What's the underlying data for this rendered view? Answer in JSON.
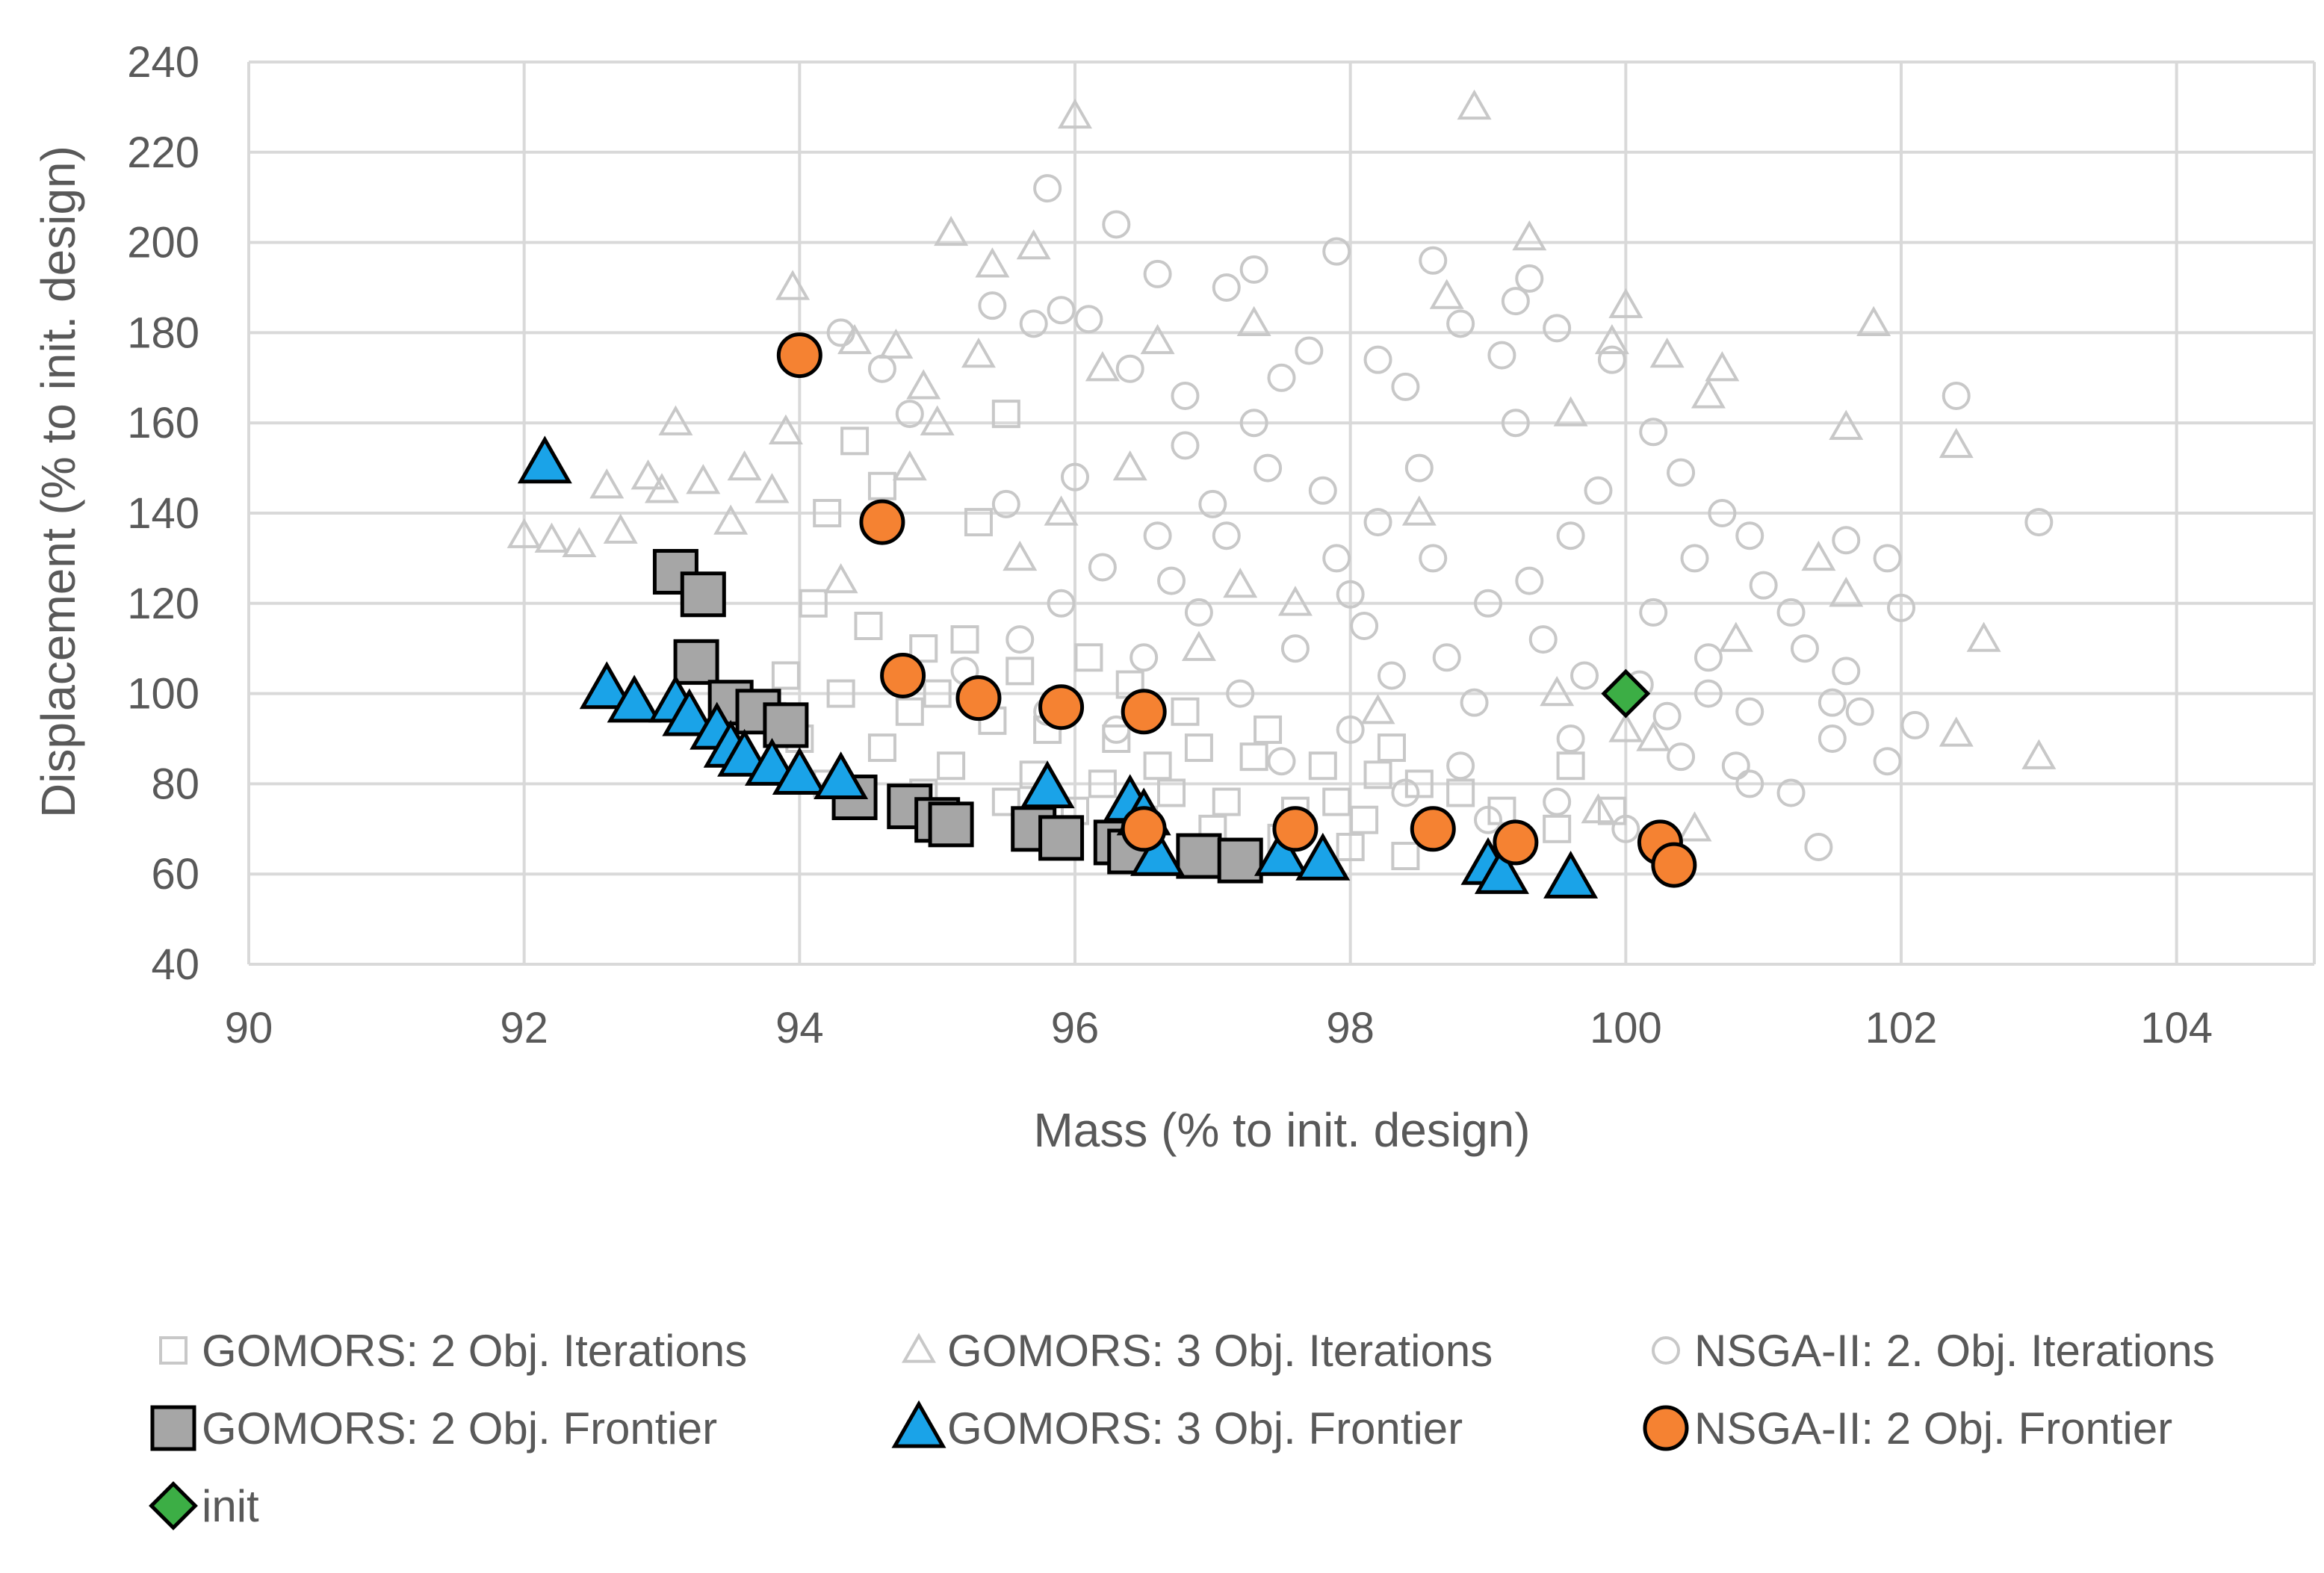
{
  "chart_data": {
    "type": "scatter",
    "title": "",
    "xlabel": "Mass (% to init. design)",
    "ylabel": "Displacement (% to init. design)",
    "xlim": [
      90,
      105
    ],
    "ylim": [
      40,
      240
    ],
    "xticks": [
      90,
      92,
      94,
      96,
      98,
      100,
      102,
      104
    ],
    "yticks": [
      40,
      60,
      80,
      100,
      120,
      140,
      160,
      180,
      200,
      220,
      240
    ],
    "grid": true,
    "legend_position": "bottom",
    "colors": {
      "iterations": "#c8c8c8",
      "gomors2_frontier": "#a6a6a6",
      "gomors3_frontier": "#1aa3e8",
      "nsga_frontier": "#f58232",
      "init": "#3cae45",
      "grid": "#d9d9d9",
      "text": "#595959"
    },
    "series": [
      {
        "name": "GOMORS: 2 Obj. Iterations",
        "marker": "square-open",
        "points": [
          [
            93.1,
            127
          ],
          [
            93.3,
            122
          ],
          [
            93.2,
            107
          ],
          [
            93.5,
            98
          ],
          [
            93.7,
            96
          ],
          [
            93.8,
            95
          ],
          [
            94.2,
            140
          ],
          [
            94.4,
            156
          ],
          [
            94.6,
            146
          ],
          [
            95.3,
            138
          ],
          [
            95.5,
            162
          ],
          [
            94.1,
            120
          ],
          [
            94.5,
            115
          ],
          [
            94.9,
            110
          ],
          [
            95.2,
            112
          ],
          [
            95.6,
            105
          ],
          [
            96.1,
            108
          ],
          [
            96.4,
            102
          ],
          [
            93.9,
            104
          ],
          [
            94.3,
            100
          ],
          [
            94.8,
            96
          ],
          [
            95.4,
            94
          ],
          [
            95.8,
            92
          ],
          [
            96.3,
            90
          ],
          [
            96.9,
            88
          ],
          [
            97.3,
            86
          ],
          [
            97.8,
            84
          ],
          [
            98.2,
            82
          ],
          [
            98.5,
            80
          ],
          [
            94.6,
            88
          ],
          [
            95.1,
            84
          ],
          [
            95.7,
            82
          ],
          [
            96.2,
            80
          ],
          [
            96.7,
            78
          ],
          [
            97.1,
            76
          ],
          [
            97.6,
            74
          ],
          [
            98.1,
            72
          ],
          [
            98.6,
            70
          ],
          [
            99.2,
            68
          ],
          [
            99.5,
            70
          ],
          [
            99.9,
            74
          ],
          [
            94.2,
            80
          ],
          [
            94.9,
            78
          ],
          [
            95.5,
            76
          ],
          [
            96.0,
            74
          ],
          [
            96.5,
            72
          ],
          [
            97.0,
            70
          ],
          [
            97.5,
            68
          ],
          [
            98.0,
            66
          ],
          [
            98.4,
            64
          ],
          [
            96.8,
            96
          ],
          [
            97.4,
            92
          ],
          [
            98.8,
            78
          ],
          [
            99.6,
            84
          ],
          [
            94.0,
            90
          ],
          [
            95.0,
            100
          ],
          [
            96.6,
            84
          ],
          [
            97.9,
            76
          ],
          [
            98.3,
            88
          ],
          [
            99.1,
            74
          ]
        ]
      },
      {
        "name": "GOMORS: 3 Obj. Iterations",
        "marker": "triangle-open",
        "points": [
          [
            92.0,
            135
          ],
          [
            92.2,
            134
          ],
          [
            92.4,
            133
          ],
          [
            92.6,
            146
          ],
          [
            92.7,
            136
          ],
          [
            92.9,
            148
          ],
          [
            93.0,
            145
          ],
          [
            93.1,
            160
          ],
          [
            93.3,
            147
          ],
          [
            93.5,
            138
          ],
          [
            93.6,
            150
          ],
          [
            93.8,
            145
          ],
          [
            93.95,
            190
          ],
          [
            94.4,
            178
          ],
          [
            94.7,
            177
          ],
          [
            95.1,
            202
          ],
          [
            95.4,
            195
          ],
          [
            95.7,
            199
          ],
          [
            96.0,
            228
          ],
          [
            95.3,
            175
          ],
          [
            96.2,
            172
          ],
          [
            94.9,
            168
          ],
          [
            95.0,
            160
          ],
          [
            94.8,
            150
          ],
          [
            94.3,
            125
          ],
          [
            95.6,
            130
          ],
          [
            96.6,
            178
          ],
          [
            97.3,
            182
          ],
          [
            98.7,
            188
          ],
          [
            98.9,
            230
          ],
          [
            99.3,
            201
          ],
          [
            99.6,
            162
          ],
          [
            99.9,
            178
          ],
          [
            100.0,
            186
          ],
          [
            100.3,
            175
          ],
          [
            100.6,
            166
          ],
          [
            100.7,
            172
          ],
          [
            101.6,
            159
          ],
          [
            101.8,
            182
          ],
          [
            102.4,
            155
          ],
          [
            102.6,
            112
          ],
          [
            102.4,
            91
          ],
          [
            103.0,
            86
          ],
          [
            100.2,
            90
          ],
          [
            100.0,
            92
          ],
          [
            99.5,
            100
          ],
          [
            98.5,
            140
          ],
          [
            97.6,
            120
          ],
          [
            96.9,
            110
          ],
          [
            100.8,
            112
          ],
          [
            101.4,
            130
          ],
          [
            101.6,
            122
          ],
          [
            100.5,
            70
          ],
          [
            99.8,
            74
          ],
          [
            98.2,
            96
          ],
          [
            97.2,
            124
          ],
          [
            96.4,
            150
          ],
          [
            95.9,
            140
          ],
          [
            94.6,
            138
          ],
          [
            93.9,
            158
          ]
        ]
      },
      {
        "name": "NSGA-II: 2. Obj. Iterations",
        "marker": "circle-open",
        "points": [
          [
            94.3,
            180
          ],
          [
            94.6,
            172
          ],
          [
            94.8,
            162
          ],
          [
            95.4,
            186
          ],
          [
            95.7,
            182
          ],
          [
            95.8,
            212
          ],
          [
            95.9,
            185
          ],
          [
            96.3,
            204
          ],
          [
            96.6,
            193
          ],
          [
            96.1,
            183
          ],
          [
            96.4,
            172
          ],
          [
            96.8,
            166
          ],
          [
            97.1,
            190
          ],
          [
            97.3,
            194
          ],
          [
            97.5,
            170
          ],
          [
            97.7,
            176
          ],
          [
            97.9,
            198
          ],
          [
            98.2,
            174
          ],
          [
            98.4,
            168
          ],
          [
            98.6,
            196
          ],
          [
            98.8,
            182
          ],
          [
            99.1,
            175
          ],
          [
            99.2,
            187
          ],
          [
            99.3,
            192
          ],
          [
            99.5,
            181
          ],
          [
            99.9,
            174
          ],
          [
            100.2,
            158
          ],
          [
            100.4,
            149
          ],
          [
            100.7,
            140
          ],
          [
            100.9,
            135
          ],
          [
            101.0,
            124
          ],
          [
            101.2,
            118
          ],
          [
            101.3,
            110
          ],
          [
            101.5,
            98
          ],
          [
            101.6,
            105
          ],
          [
            101.7,
            96
          ],
          [
            101.9,
            130
          ],
          [
            102.0,
            119
          ],
          [
            101.4,
            66
          ],
          [
            101.9,
            85
          ],
          [
            102.1,
            93
          ],
          [
            102.4,
            166
          ],
          [
            103.0,
            138
          ],
          [
            101.6,
            134
          ],
          [
            101.5,
            90
          ],
          [
            100.8,
            84
          ],
          [
            100.6,
            100
          ],
          [
            100.3,
            95
          ],
          [
            100.1,
            102
          ],
          [
            99.7,
            104
          ],
          [
            99.4,
            112
          ],
          [
            99.0,
            120
          ],
          [
            98.6,
            130
          ],
          [
            98.2,
            138
          ],
          [
            97.8,
            145
          ],
          [
            97.4,
            150
          ],
          [
            97.0,
            142
          ],
          [
            96.6,
            135
          ],
          [
            96.2,
            128
          ],
          [
            95.9,
            120
          ],
          [
            95.6,
            112
          ],
          [
            95.2,
            105
          ],
          [
            96.9,
            118
          ],
          [
            97.6,
            110
          ],
          [
            98.3,
            104
          ],
          [
            98.9,
            98
          ],
          [
            99.6,
            90
          ],
          [
            100.4,
            86
          ],
          [
            100.9,
            80
          ],
          [
            101.2,
            78
          ],
          [
            100.0,
            70
          ],
          [
            99.5,
            76
          ],
          [
            98.8,
            84
          ],
          [
            98.0,
            92
          ],
          [
            97.2,
            100
          ],
          [
            96.5,
            108
          ],
          [
            97.9,
            130
          ],
          [
            98.5,
            150
          ],
          [
            99.2,
            160
          ],
          [
            99.8,
            145
          ],
          [
            100.5,
            130
          ],
          [
            97.3,
            160
          ],
          [
            96.8,
            155
          ],
          [
            96.0,
            148
          ],
          [
            95.5,
            142
          ],
          [
            98.1,
            115
          ],
          [
            98.7,
            108
          ],
          [
            99.3,
            125
          ],
          [
            100.2,
            118
          ],
          [
            100.6,
            108
          ],
          [
            97.5,
            85
          ],
          [
            98.4,
            78
          ],
          [
            99.0,
            72
          ],
          [
            96.3,
            92
          ],
          [
            95.8,
            96
          ],
          [
            96.7,
            125
          ],
          [
            97.1,
            135
          ],
          [
            98.0,
            122
          ],
          [
            99.6,
            135
          ],
          [
            100.9,
            96
          ]
        ]
      },
      {
        "name": "GOMORS: 2 Obj. Frontier",
        "marker": "square-filled",
        "points": [
          [
            93.1,
            127
          ],
          [
            93.3,
            122
          ],
          [
            93.25,
            107
          ],
          [
            93.5,
            98
          ],
          [
            93.7,
            96
          ],
          [
            93.9,
            93
          ],
          [
            94.4,
            77
          ],
          [
            94.8,
            75
          ],
          [
            95.0,
            72
          ],
          [
            95.1,
            71
          ],
          [
            95.7,
            70
          ],
          [
            95.9,
            68
          ],
          [
            96.3,
            67
          ],
          [
            96.4,
            65
          ],
          [
            96.9,
            64
          ],
          [
            97.2,
            63
          ]
        ]
      },
      {
        "name": "GOMORS: 3 Obj. Frontier",
        "marker": "triangle-filled",
        "points": [
          [
            92.15,
            151
          ],
          [
            92.6,
            101
          ],
          [
            92.8,
            98
          ],
          [
            93.1,
            98
          ],
          [
            93.2,
            95
          ],
          [
            93.4,
            92
          ],
          [
            93.5,
            88
          ],
          [
            93.6,
            86
          ],
          [
            93.8,
            84
          ],
          [
            94.0,
            82
          ],
          [
            94.3,
            81
          ],
          [
            95.8,
            79
          ],
          [
            96.4,
            76
          ],
          [
            96.5,
            73
          ],
          [
            96.6,
            64
          ],
          [
            97.5,
            64
          ],
          [
            97.8,
            63
          ],
          [
            99.0,
            62
          ],
          [
            99.1,
            60
          ],
          [
            99.6,
            59
          ]
        ]
      },
      {
        "name": "NSGA-II: 2 Obj. Frontier",
        "marker": "circle-filled",
        "points": [
          [
            94.0,
            175
          ],
          [
            94.6,
            138
          ],
          [
            94.75,
            104
          ],
          [
            95.3,
            99
          ],
          [
            95.9,
            97
          ],
          [
            96.5,
            96
          ],
          [
            96.5,
            70
          ],
          [
            97.6,
            70
          ],
          [
            98.6,
            70
          ],
          [
            99.2,
            67
          ],
          [
            100.25,
            67
          ],
          [
            100.35,
            62
          ]
        ]
      },
      {
        "name": "init",
        "marker": "diamond-filled",
        "points": [
          [
            100.0,
            100
          ]
        ]
      }
    ]
  }
}
